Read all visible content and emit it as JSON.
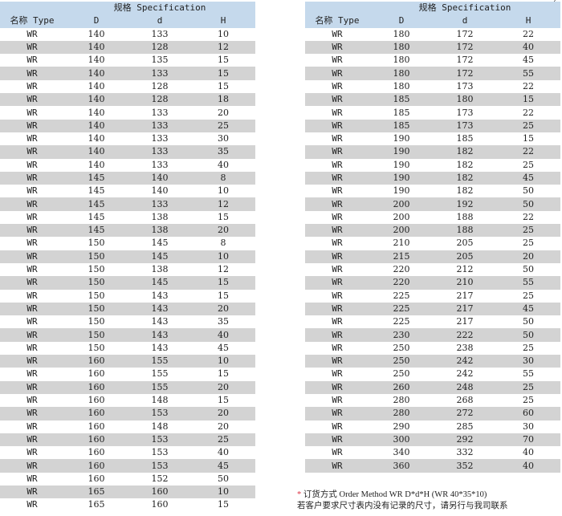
{
  "header": {
    "spec_label": "规格 Specification",
    "type_label": "名称 Type",
    "col_D": "D",
    "col_d": "d",
    "col_H": "H"
  },
  "left_rows": [
    [
      "WR",
      "140",
      "133",
      "10"
    ],
    [
      "WR",
      "140",
      "128",
      "12"
    ],
    [
      "WR",
      "140",
      "135",
      "15"
    ],
    [
      "WR",
      "140",
      "133",
      "15"
    ],
    [
      "WR",
      "140",
      "128",
      "15"
    ],
    [
      "WR",
      "140",
      "128",
      "18"
    ],
    [
      "WR",
      "140",
      "133",
      "20"
    ],
    [
      "WR",
      "140",
      "133",
      "25"
    ],
    [
      "WR",
      "140",
      "133",
      "30"
    ],
    [
      "WR",
      "140",
      "133",
      "35"
    ],
    [
      "WR",
      "140",
      "133",
      "40"
    ],
    [
      "WR",
      "145",
      "140",
      "8"
    ],
    [
      "WR",
      "145",
      "140",
      "10"
    ],
    [
      "WR",
      "145",
      "133",
      "12"
    ],
    [
      "WR",
      "145",
      "138",
      "15"
    ],
    [
      "WR",
      "145",
      "138",
      "20"
    ],
    [
      "WR",
      "150",
      "145",
      "8"
    ],
    [
      "WR",
      "150",
      "145",
      "10"
    ],
    [
      "WR",
      "150",
      "138",
      "12"
    ],
    [
      "WR",
      "150",
      "145",
      "15"
    ],
    [
      "WR",
      "150",
      "143",
      "15"
    ],
    [
      "WR",
      "150",
      "143",
      "20"
    ],
    [
      "WR",
      "150",
      "143",
      "35"
    ],
    [
      "WR",
      "150",
      "143",
      "40"
    ],
    [
      "WR",
      "150",
      "143",
      "45"
    ],
    [
      "WR",
      "160",
      "155",
      "10"
    ],
    [
      "WR",
      "160",
      "155",
      "15"
    ],
    [
      "WR",
      "160",
      "155",
      "20"
    ],
    [
      "WR",
      "160",
      "148",
      "15"
    ],
    [
      "WR",
      "160",
      "153",
      "20"
    ],
    [
      "WR",
      "160",
      "148",
      "20"
    ],
    [
      "WR",
      "160",
      "153",
      "25"
    ],
    [
      "WR",
      "160",
      "153",
      "40"
    ],
    [
      "WR",
      "160",
      "153",
      "45"
    ],
    [
      "WR",
      "160",
      "152",
      "50"
    ],
    [
      "WR",
      "165",
      "160",
      "10"
    ],
    [
      "WR",
      "165",
      "160",
      "15"
    ]
  ],
  "right_rows": [
    [
      "WR",
      "180",
      "172",
      "22"
    ],
    [
      "WR",
      "180",
      "172",
      "40"
    ],
    [
      "WR",
      "180",
      "172",
      "45"
    ],
    [
      "WR",
      "180",
      "172",
      "55"
    ],
    [
      "WR",
      "180",
      "173",
      "22"
    ],
    [
      "WR",
      "185",
      "180",
      "15"
    ],
    [
      "WR",
      "185",
      "173",
      "22"
    ],
    [
      "WR",
      "185",
      "173",
      "25"
    ],
    [
      "WR",
      "190",
      "185",
      "15"
    ],
    [
      "WR",
      "190",
      "182",
      "22"
    ],
    [
      "WR",
      "190",
      "182",
      "25"
    ],
    [
      "WR",
      "190",
      "182",
      "45"
    ],
    [
      "WR",
      "190",
      "182",
      "50"
    ],
    [
      "WR",
      "200",
      "192",
      "50"
    ],
    [
      "WR",
      "200",
      "188",
      "22"
    ],
    [
      "WR",
      "200",
      "188",
      "25"
    ],
    [
      "WR",
      "210",
      "205",
      "25"
    ],
    [
      "WR",
      "215",
      "205",
      "20"
    ],
    [
      "WR",
      "220",
      "212",
      "50"
    ],
    [
      "WR",
      "220",
      "210",
      "55"
    ],
    [
      "WR",
      "225",
      "217",
      "25"
    ],
    [
      "WR",
      "225",
      "217",
      "45"
    ],
    [
      "WR",
      "225",
      "217",
      "50"
    ],
    [
      "WR",
      "230",
      "222",
      "50"
    ],
    [
      "WR",
      "250",
      "238",
      "25"
    ],
    [
      "WR",
      "250",
      "242",
      "30"
    ],
    [
      "WR",
      "250",
      "242",
      "55"
    ],
    [
      "WR",
      "260",
      "248",
      "25"
    ],
    [
      "WR",
      "280",
      "268",
      "25"
    ],
    [
      "WR",
      "280",
      "272",
      "60"
    ],
    [
      "WR",
      "290",
      "285",
      "30"
    ],
    [
      "WR",
      "300",
      "292",
      "70"
    ],
    [
      "WR",
      "340",
      "332",
      "40"
    ],
    [
      "WR",
      "360",
      "352",
      "40"
    ]
  ],
  "note": {
    "star": "*",
    "line1": "订货方式 Order Method  WR  D*d*H  (WR 40*35*10)",
    "line2": "若客户要求尺寸表内没有记录的尺寸，请另行与我司联系"
  },
  "corner_mark": "("
}
